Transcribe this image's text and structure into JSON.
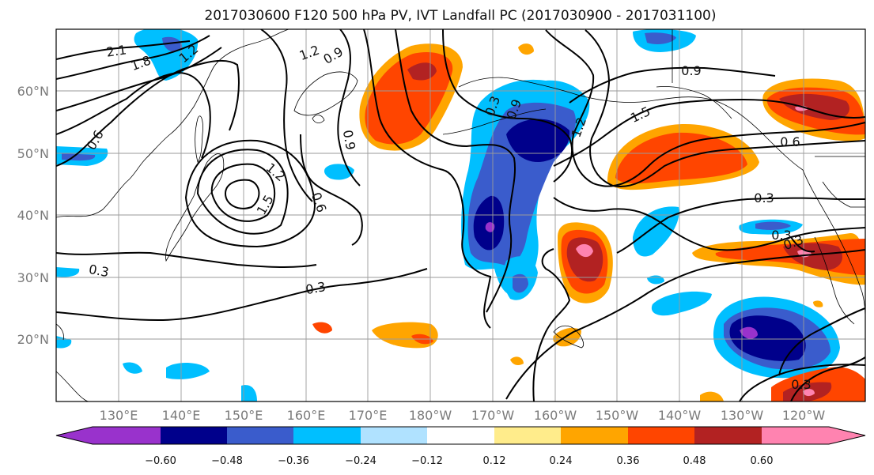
{
  "title": "2017030600 F120 500 hPa PV, IVT Landfall PC (2017030900 - 2017031100)",
  "lat_labels": [
    "60°N",
    "50°N",
    "40°N",
    "30°N",
    "20°N"
  ],
  "lon_labels": [
    "130°E",
    "140°E",
    "150°E",
    "160°E",
    "170°E",
    "180°W",
    "170°W",
    "160°W",
    "150°W",
    "140°W",
    "130°W",
    "120°W"
  ],
  "contour_labels": [
    "2.1",
    "1.8",
    "1.2",
    "1.2",
    "0.9",
    "0.9",
    "0.9",
    "0.6",
    "0.3",
    "1.2",
    "1.5",
    "0.6",
    "1.2",
    "0.3",
    "0.3",
    "0.3",
    "0.9",
    "1.5",
    "0.6",
    "0.3",
    "0.3",
    "0.3"
  ],
  "colorbar": {
    "tick_labels": [
      "−0.60",
      "−0.48",
      "−0.36",
      "−0.24",
      "−0.12",
      "0.12",
      "0.24",
      "0.36",
      "0.48",
      "0.60"
    ],
    "colors": [
      "#9932cc",
      "#00008b",
      "#3a5ccc",
      "#00bfff",
      "#b0e2ff",
      "#ffffff",
      "#ffec8b",
      "#ffa500",
      "#ff4500",
      "#b22222",
      "#ff83b0"
    ]
  },
  "chart_data": {
    "type": "heatmap",
    "title": "2017030600 F120 500 hPa PV, IVT Landfall PC (2017030900 - 2017031100)",
    "x_extent_deg_east": [
      120,
      250
    ],
    "y_extent_deg_north": [
      10,
      70
    ],
    "grid": true,
    "contour_field": "500 hPa PV",
    "contour_levels": [
      0.3,
      0.6,
      0.9,
      1.2,
      1.5,
      1.8,
      2.1
    ],
    "fill_field": "IVT Landfall PC",
    "fill_levels": [
      -0.6,
      -0.48,
      -0.36,
      -0.24,
      -0.12,
      0.12,
      0.24,
      0.36,
      0.48,
      0.6
    ],
    "extend": "both"
  }
}
